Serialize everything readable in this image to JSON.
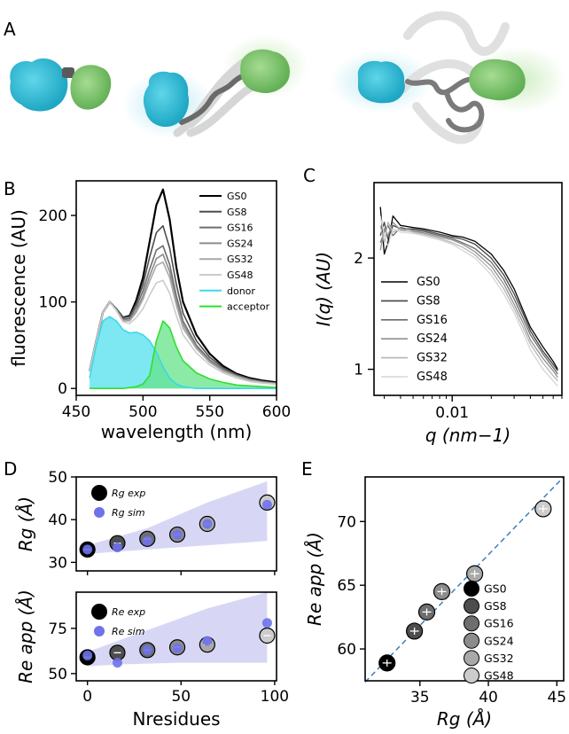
{
  "panels": {
    "A": "A",
    "B": "B",
    "C": "C",
    "D": "D",
    "E": "E"
  },
  "colors": {
    "cyan_domain": "#3cc4dc",
    "green_domain": "#86cc78",
    "linker": "#6a6a6a",
    "ghost": "#d8d8d8",
    "band": "#c9c9f2",
    "sim": "#6f72ea"
  },
  "chart_data": [
    {
      "panel": "B",
      "type": "line",
      "xlabel": "wavelength (nm)",
      "ylabel": "fluorescence (AU)",
      "xlim": [
        450,
        600
      ],
      "ylim": [
        -8,
        240
      ],
      "xticks": [
        450,
        500,
        550,
        600
      ],
      "yticks": [
        0,
        100,
        200
      ],
      "legend_position": "top-right",
      "x": [
        460,
        465,
        470,
        475,
        480,
        485,
        490,
        495,
        500,
        505,
        510,
        515,
        520,
        525,
        530,
        540,
        550,
        560,
        570,
        580,
        590,
        600
      ],
      "series": [
        {
          "name": "GS0",
          "color": "#000000",
          "values": [
            20,
            55,
            88,
            100,
            92,
            82,
            84,
            102,
            128,
            170,
            212,
            230,
            195,
            140,
            100,
            62,
            40,
            26,
            17,
            12,
            9,
            7
          ]
        },
        {
          "name": "GS8",
          "color": "#4d4d4d",
          "values": [
            20,
            55,
            88,
            100,
            92,
            82,
            83,
            98,
            120,
            152,
            180,
            188,
            162,
            120,
            87,
            55,
            36,
            24,
            16,
            11,
            8,
            6
          ]
        },
        {
          "name": "GS16",
          "color": "#6e6e6e",
          "values": [
            20,
            55,
            88,
            100,
            92,
            80,
            81,
            94,
            113,
            138,
            160,
            165,
            143,
            107,
            78,
            50,
            33,
            22,
            15,
            10,
            8,
            6
          ]
        },
        {
          "name": "GS24",
          "color": "#8c8c8c",
          "values": [
            20,
            55,
            88,
            100,
            91,
            79,
            79,
            90,
            107,
            130,
            150,
            155,
            135,
            101,
            74,
            48,
            31,
            21,
            14,
            10,
            7,
            6
          ]
        },
        {
          "name": "GS32",
          "color": "#a9a9a9",
          "values": [
            20,
            55,
            88,
            100,
            91,
            78,
            78,
            88,
            103,
            124,
            142,
            146,
            128,
            96,
            70,
            46,
            30,
            20,
            14,
            9,
            7,
            5
          ]
        },
        {
          "name": "GS48",
          "color": "#cccccc",
          "values": [
            20,
            55,
            88,
            100,
            90,
            77,
            75,
            82,
            92,
            108,
            122,
            125,
            110,
            84,
            62,
            41,
            27,
            18,
            12,
            8,
            6,
            5
          ]
        },
        {
          "name": "donor",
          "color": "#3cd8e8",
          "values": [
            12,
            50,
            78,
            83,
            78,
            68,
            64,
            65,
            62,
            55,
            42,
            25,
            12,
            5,
            2,
            0,
            0,
            0,
            0,
            0,
            0,
            0
          ]
        },
        {
          "name": "acceptor",
          "color": "#2ee02e",
          "values": [
            0,
            0,
            0,
            0,
            0,
            0,
            1,
            2,
            5,
            15,
            55,
            78,
            70,
            48,
            32,
            18,
            11,
            7,
            4,
            3,
            2,
            1
          ]
        }
      ]
    },
    {
      "panel": "C",
      "type": "line",
      "xlabel": "q (nm−1)",
      "ylabel": "I(q) (AU)",
      "xscale": "log",
      "yscale": "log",
      "xlim": [
        0.0025,
        0.07
      ],
      "ylim": [
        0.85,
        3.2
      ],
      "xticks": [
        {
          "value": 0.01,
          "label": "0.01"
        }
      ],
      "yticks": [
        {
          "value": 1,
          "label": "1"
        },
        {
          "value": 2,
          "label": "2"
        }
      ],
      "legend_position": "bottom-left",
      "x": [
        0.0028,
        0.003,
        0.0032,
        0.0035,
        0.004,
        0.005,
        0.006,
        0.008,
        0.01,
        0.012,
        0.015,
        0.02,
        0.025,
        0.03,
        0.035,
        0.04,
        0.05,
        0.06,
        0.065
      ],
      "series": [
        {
          "name": "GS0",
          "color": "#000000",
          "values": [
            2.75,
            2.05,
            2.2,
            2.6,
            2.45,
            2.42,
            2.4,
            2.35,
            2.3,
            2.28,
            2.22,
            2.05,
            1.85,
            1.65,
            1.45,
            1.3,
            1.15,
            1.05,
            1.0
          ]
        },
        {
          "name": "GS8",
          "color": "#444444",
          "values": [
            2.3,
            2.5,
            2.25,
            2.45,
            2.4,
            2.4,
            2.38,
            2.32,
            2.28,
            2.25,
            2.18,
            2.0,
            1.8,
            1.6,
            1.42,
            1.27,
            1.12,
            1.03,
            0.99
          ]
        },
        {
          "name": "GS16",
          "color": "#6a6a6a",
          "values": [
            2.2,
            2.35,
            2.45,
            2.3,
            2.42,
            2.38,
            2.36,
            2.3,
            2.26,
            2.2,
            2.12,
            1.95,
            1.75,
            1.55,
            1.38,
            1.24,
            1.1,
            1.01,
            0.97
          ]
        },
        {
          "name": "GS24",
          "color": "#909090",
          "values": [
            2.1,
            2.4,
            2.3,
            2.5,
            2.38,
            2.36,
            2.34,
            2.28,
            2.24,
            2.18,
            2.08,
            1.9,
            1.7,
            1.5,
            1.34,
            1.2,
            1.07,
            0.99,
            0.95
          ]
        },
        {
          "name": "GS32",
          "color": "#b5b5b5",
          "values": [
            2.45,
            2.2,
            2.5,
            2.35,
            2.4,
            2.35,
            2.32,
            2.26,
            2.2,
            2.14,
            2.04,
            1.85,
            1.65,
            1.46,
            1.3,
            1.17,
            1.04,
            0.96,
            0.93
          ]
        },
        {
          "name": "GS48",
          "color": "#d5d5d5",
          "values": [
            2.6,
            2.3,
            2.15,
            2.4,
            2.35,
            2.33,
            2.3,
            2.24,
            2.18,
            2.1,
            2.0,
            1.8,
            1.6,
            1.42,
            1.26,
            1.13,
            1.0,
            0.93,
            0.9
          ]
        }
      ]
    },
    {
      "panel": "D-top",
      "type": "scatter",
      "ylabel": "Rg (Å)",
      "xlim": [
        -6,
        101
      ],
      "ylim": [
        28,
        50
      ],
      "yticks": [
        30,
        40,
        50
      ],
      "legend_position": "top-left",
      "x": [
        0,
        16,
        32,
        48,
        64,
        96
      ],
      "series": [
        {
          "name": "Rg exp",
          "color_scale": [
            "#000000",
            "#4d4d4d",
            "#6e6e6e",
            "#8c8c8c",
            "#a9a9a9",
            "#cccccc"
          ],
          "values": [
            33,
            34.5,
            35.5,
            36.5,
            39,
            44
          ]
        },
        {
          "name": "Rg sim",
          "color": "#6f72ea",
          "values": [
            33,
            33.5,
            35,
            36.5,
            39,
            43.5
          ]
        }
      ],
      "band": {
        "x": [
          0,
          16,
          32,
          48,
          64,
          96
        ],
        "lower": [
          32,
          32.5,
          33,
          33.5,
          34,
          35
        ],
        "upper": [
          34,
          36,
          38,
          41,
          44,
          49
        ]
      }
    },
    {
      "panel": "D-bottom",
      "type": "scatter",
      "xlabel": "Nresidues",
      "ylabel": "Re app (Å)",
      "xlim": [
        -6,
        101
      ],
      "ylim": [
        46,
        95
      ],
      "xticks": [
        0,
        50,
        100
      ],
      "yticks": [
        50,
        75
      ],
      "legend_position": "top-left",
      "x": [
        0,
        16,
        32,
        48,
        64,
        96
      ],
      "series": [
        {
          "name": "Re exp",
          "color_scale": [
            "#000000",
            "#4d4d4d",
            "#6e6e6e",
            "#8c8c8c",
            "#a9a9a9",
            "#cccccc"
          ],
          "values": [
            59,
            61.5,
            63,
            64.5,
            66,
            71
          ]
        },
        {
          "name": "Re sim",
          "color": "#6f72ea",
          "values": [
            60,
            56,
            63,
            64,
            68,
            78
          ]
        }
      ],
      "band": {
        "x": [
          0,
          16,
          32,
          48,
          64,
          96
        ],
        "lower": [
          54,
          55,
          55.5,
          56,
          56,
          56
        ],
        "upper": [
          62,
          68,
          74,
          80,
          86,
          95
        ]
      }
    },
    {
      "panel": "E",
      "type": "scatter",
      "xlabel": "Rg (Å)",
      "ylabel": "Re app (Å)",
      "xlim": [
        31,
        45.5
      ],
      "ylim": [
        57.5,
        73.5
      ],
      "xticks": [
        35,
        40,
        45
      ],
      "yticks": [
        60,
        65,
        70
      ],
      "legend_position": "bottom-right",
      "points": [
        {
          "name": "GS0",
          "color": "#000000",
          "x": 32.6,
          "y": 58.9
        },
        {
          "name": "GS8",
          "color": "#4d4d4d",
          "x": 34.6,
          "y": 61.4
        },
        {
          "name": "GS16",
          "color": "#6e6e6e",
          "x": 35.5,
          "y": 62.9
        },
        {
          "name": "GS24",
          "color": "#8c8c8c",
          "x": 36.6,
          "y": 64.5
        },
        {
          "name": "GS32",
          "color": "#a9a9a9",
          "x": 39.0,
          "y": 65.9
        },
        {
          "name": "GS48",
          "color": "#cccccc",
          "x": 44.0,
          "y": 71.0
        }
      ],
      "reference_line": {
        "style": "dashed",
        "color": "#3a7fc1",
        "from": [
          31,
          57.4
        ],
        "to": [
          45.5,
          73.5
        ]
      }
    }
  ]
}
